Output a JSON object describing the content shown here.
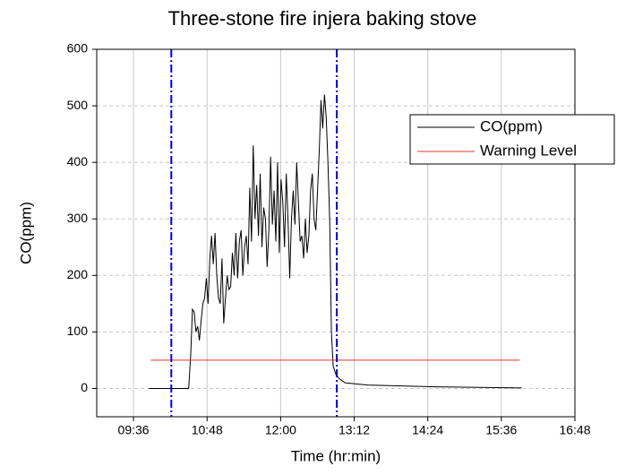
{
  "chart_data": {
    "type": "line",
    "title": "Three-stone fire injera baking stove",
    "x_label": "Time (hr:min)",
    "y_label": "CO(ppm)",
    "xlim": [
      540,
      1008
    ],
    "ylim": [
      -50,
      600
    ],
    "xticks": [
      {
        "value": 576,
        "label": "09:36"
      },
      {
        "value": 648,
        "label": "10:48"
      },
      {
        "value": 720,
        "label": "12:00"
      },
      {
        "value": 792,
        "label": "13:12"
      },
      {
        "value": 864,
        "label": "14:24"
      },
      {
        "value": 936,
        "label": "15:36"
      },
      {
        "value": 1008,
        "label": "16:48"
      }
    ],
    "yticks": [
      0,
      100,
      200,
      300,
      400,
      500,
      600
    ],
    "grid": true,
    "legend": "upper right",
    "vlines": [
      613,
      775
    ],
    "vline_color": "#0000cc",
    "series": [
      {
        "name": "CO(ppm)",
        "color": "#000000",
        "x": [
          591,
          630,
          632,
          633.7,
          635.4,
          637.1,
          638.8,
          640.5,
          642.2,
          643.9,
          645.6,
          647.3,
          649,
          650.7,
          652.4,
          654.1,
          655.8,
          657.5,
          659.2,
          660.9,
          662.6,
          664.3,
          666,
          667.7,
          669.4,
          671.1,
          672.8,
          674.5,
          676.2,
          677.9,
          679.6,
          681.3,
          683,
          684.7,
          686.4,
          688.1,
          689.8,
          691.5,
          693.2,
          694.9,
          696.6,
          698.3,
          700,
          701.7,
          703.4,
          705.1,
          706.8,
          708.5,
          710.2,
          711.9,
          713.6,
          715.3,
          717,
          718.7,
          720.4,
          722.1,
          723.8,
          725.5,
          727.2,
          728.9,
          730.6,
          732.3,
          734,
          735.7,
          737.4,
          739.1,
          740.8,
          742.5,
          744.2,
          745.9,
          747.6,
          749.3,
          751,
          752.7,
          754.4,
          756.1,
          757.8,
          759.5,
          761.2,
          762.9,
          764.6,
          766.3,
          768,
          769.7,
          771.4,
          774,
          777,
          783,
          805,
          872,
          956
        ],
        "values": [
          0,
          0,
          60,
          140,
          135,
          100,
          110,
          85,
          120,
          150,
          160,
          195,
          150,
          230,
          270,
          220,
          275,
          200,
          160,
          150,
          230,
          115,
          160,
          200,
          175,
          180,
          240,
          200,
          275,
          195,
          260,
          280,
          200,
          250,
          270,
          220,
          355,
          260,
          430,
          300,
          360,
          270,
          380,
          250,
          320,
          300,
          215,
          280,
          410,
          290,
          350,
          260,
          400,
          240,
          370,
          330,
          250,
          380,
          300,
          195,
          300,
          350,
          290,
          400,
          330,
          260,
          270,
          230,
          300,
          240,
          270,
          350,
          380,
          300,
          280,
          350,
          420,
          510,
          460,
          520,
          480,
          400,
          300,
          100,
          40,
          25,
          18,
          10,
          6,
          3,
          1
        ]
      },
      {
        "name": "Warning Level",
        "color": "#e8302a",
        "x": [
          593,
          954
        ],
        "values": [
          50,
          50
        ]
      }
    ]
  }
}
